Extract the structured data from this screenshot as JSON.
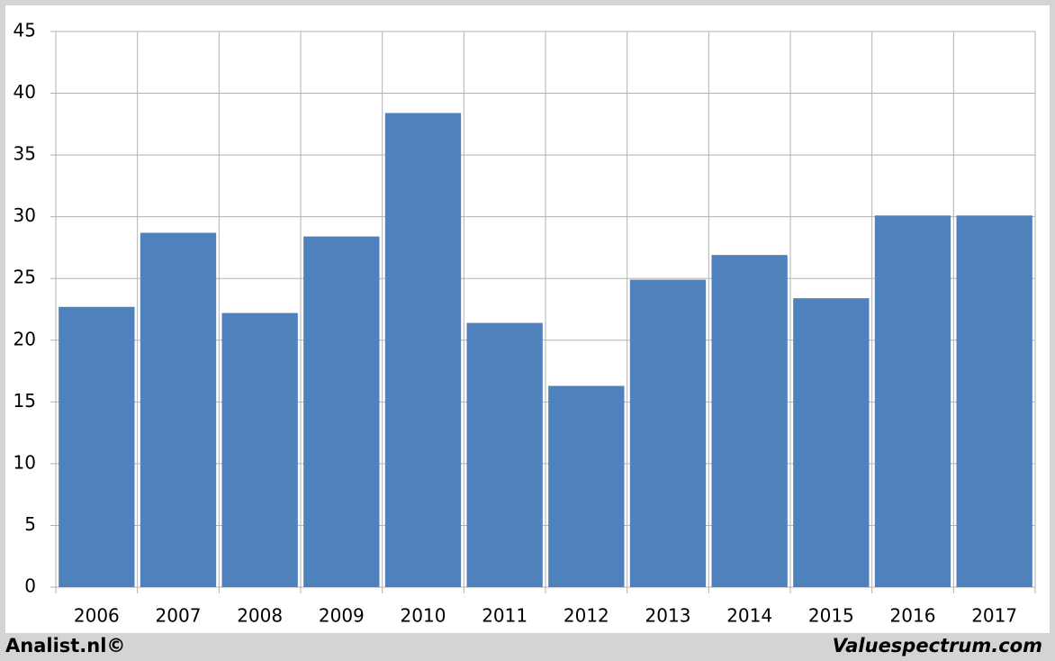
{
  "chart_data": {
    "type": "bar",
    "categories": [
      "2006",
      "2007",
      "2008",
      "2009",
      "2010",
      "2011",
      "2012",
      "2013",
      "2014",
      "2015",
      "2016",
      "2017"
    ],
    "values": [
      22.7,
      28.7,
      22.2,
      28.4,
      38.4,
      21.4,
      16.3,
      24.9,
      26.9,
      23.4,
      30.1,
      30.1
    ],
    "color": "#4f81bd",
    "ylim": [
      0,
      45
    ],
    "yticks": [
      0,
      5,
      10,
      15,
      20,
      25,
      30,
      35,
      40,
      45
    ],
    "grid": true,
    "footer_left": "Analist.nl©",
    "footer_right": "Valuespectrum.com"
  }
}
